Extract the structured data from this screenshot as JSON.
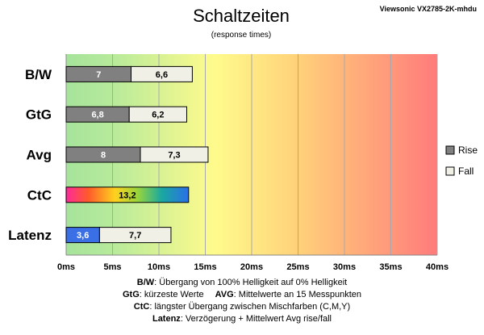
{
  "chart_data": {
    "type": "bar",
    "orientation": "horizontal",
    "stacked": true,
    "title": "Schaltzeiten",
    "subtitle": "(response times)",
    "model": "Viewsonic VX2785-2K-mhdu",
    "categories": [
      "B/W",
      "GtG",
      "Avg",
      "CtC",
      "Latenz"
    ],
    "series": [
      {
        "name": "Rise",
        "values": [
          7,
          6.8,
          8,
          null,
          3.6
        ],
        "labels": [
          "7",
          "6,8",
          "8",
          "",
          "3,6"
        ]
      },
      {
        "name": "Fall",
        "values": [
          6.6,
          6.2,
          7.3,
          null,
          7.7
        ],
        "labels": [
          "6,6",
          "6,2",
          "7,3",
          "",
          "7,7"
        ]
      }
    ],
    "ctc": {
      "value": 13.2,
      "label": "13,2"
    },
    "xlim": [
      0,
      40
    ],
    "xticks": [
      0,
      5,
      10,
      15,
      20,
      25,
      30,
      35,
      40
    ],
    "xtick_labels": [
      "0ms",
      "5ms",
      "10ms",
      "15ms",
      "20ms",
      "25ms",
      "30ms",
      "35ms",
      "40ms"
    ],
    "grid": true,
    "legend_position": "right",
    "colors": {
      "rise": "#808080",
      "fall": "#f0f0e6",
      "latenz_rise": "#3b6fe6",
      "rise_text": "#ffffff",
      "fall_text": "#000000",
      "bg_good": "#a6e39b",
      "bg_mid": "#fffb8c",
      "bg_bad": "#ff7b7b"
    }
  },
  "footer": {
    "line1_key": "B/W",
    "line1_text": ":  Übergang von 100% Helligkeit auf 0% Helligkeit",
    "line2_key_a": "GtG",
    "line2_text_a": ": kürzeste  Werte",
    "line2_key_b": "AVG",
    "line2_text_b": ": Mittelwerte  an 15 Messpunkten",
    "line3_key": "CtC",
    "line3_text": ": längster Übergang  zwischen Mischfarben  (C,M,Y)",
    "line4_key": "Latenz",
    "line4_text": ": Verzögerung  + Mittelwert  Avg rise/fall"
  }
}
